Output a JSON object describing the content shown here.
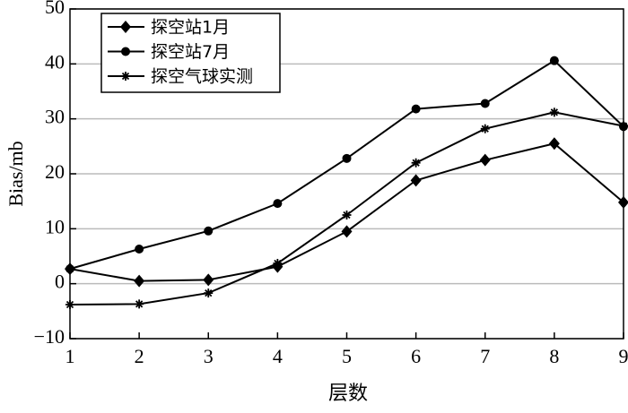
{
  "chart_data": {
    "type": "line",
    "x_label": "层数",
    "y_label": "Bias/mb",
    "x": [
      1,
      2,
      3,
      4,
      5,
      6,
      7,
      8,
      9
    ],
    "xlim": [
      1,
      9
    ],
    "xticks": [
      1,
      2,
      3,
      4,
      5,
      6,
      7,
      8,
      9
    ],
    "ylim": [
      -10,
      50
    ],
    "yticks": [
      {
        "value": -10,
        "label": "−10"
      },
      0,
      10,
      20,
      30,
      40,
      50
    ],
    "grid": true,
    "legend": "upper left",
    "series": [
      {
        "name": "探空站1月",
        "color": "#000000",
        "marker": "diamond",
        "values": [
          2.7,
          0.5,
          0.7,
          3.1,
          9.5,
          18.8,
          22.5,
          25.5,
          14.8
        ]
      },
      {
        "name": "探空站7月",
        "color": "#000000",
        "marker": "circle",
        "values": [
          2.7,
          6.3,
          9.6,
          14.6,
          22.8,
          31.8,
          32.8,
          40.6,
          28.6
        ]
      },
      {
        "name": "探空气球实测",
        "color": "#000000",
        "marker": "star",
        "values": [
          -3.8,
          -3.7,
          -1.7,
          3.7,
          12.5,
          22.0,
          28.2,
          31.2,
          28.7
        ]
      }
    ]
  }
}
